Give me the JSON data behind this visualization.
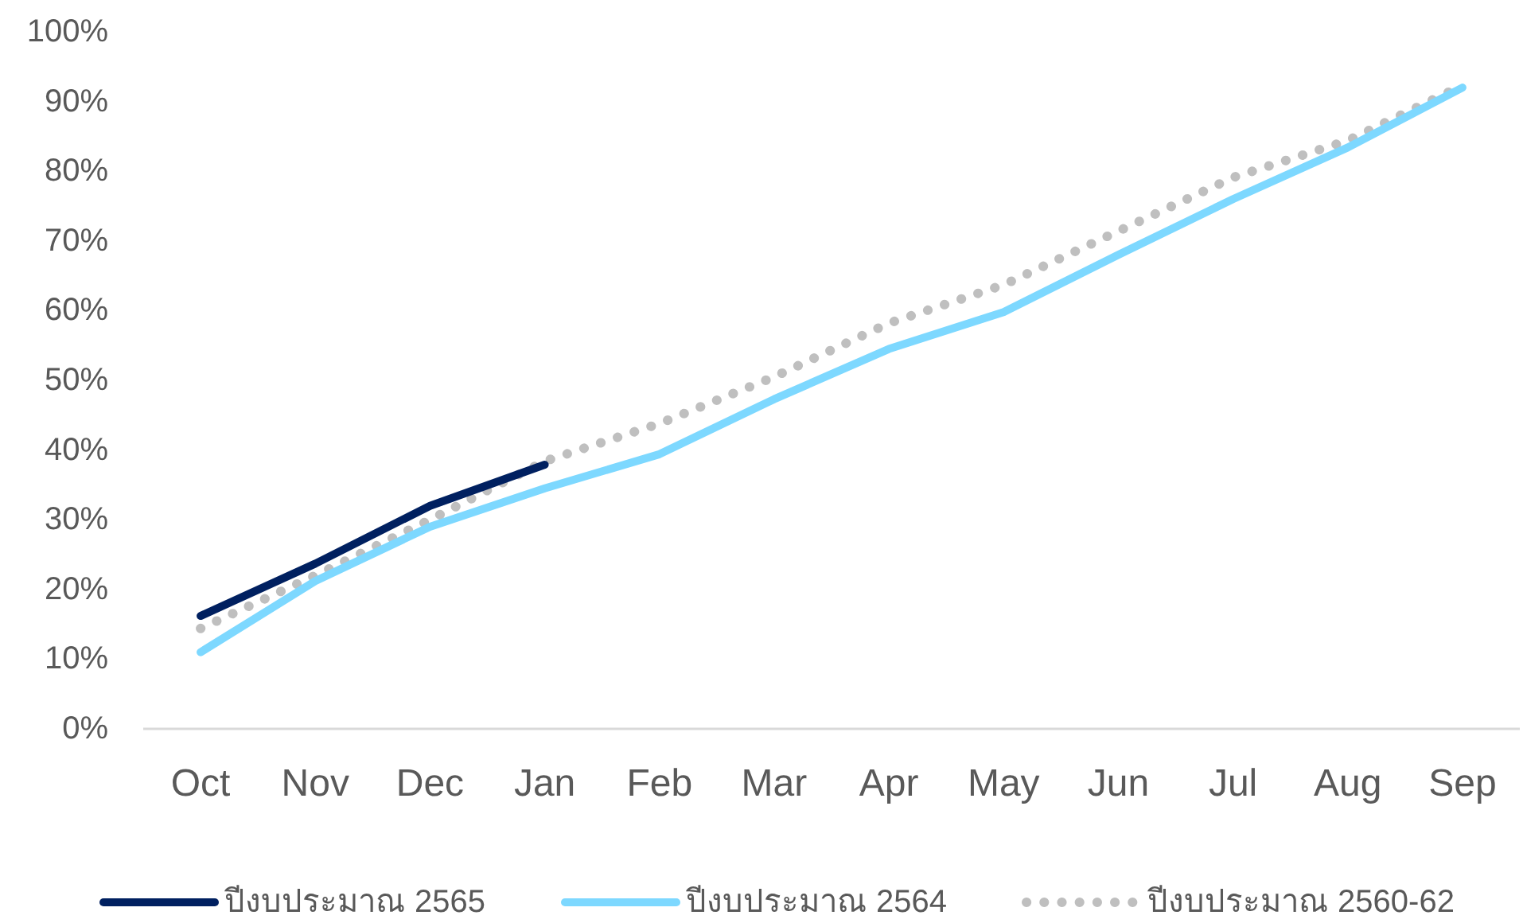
{
  "chart_data": {
    "type": "line",
    "categories": [
      "Oct",
      "Nov",
      "Dec",
      "Jan",
      "Feb",
      "Mar",
      "Apr",
      "May",
      "Jun",
      "Jul",
      "Aug",
      "Sep"
    ],
    "series": [
      {
        "name": "ปีงบประมาณ 2565",
        "color": "#002060",
        "line_style": "solid",
        "values": [
          16.2,
          23.7,
          32,
          37.9,
          null,
          null,
          null,
          null,
          null,
          null,
          null,
          null
        ]
      },
      {
        "name": "ปีงบประมาณ 2564",
        "color": "#7DD8FF",
        "line_style": "solid",
        "values": [
          11,
          21.2,
          29,
          34.5,
          39.4,
          47.3,
          54.5,
          59.8,
          68,
          76,
          83.4,
          92
        ]
      },
      {
        "name": "ปีงบประมาณ 2560-62",
        "color": "#BFBFBF",
        "line_style": "dotted",
        "values": [
          14.4,
          22,
          30,
          38.4,
          43.8,
          50.5,
          58.2,
          63.7,
          71.4,
          79.1,
          84.4,
          92.3
        ]
      }
    ],
    "ylim": [
      0,
      100
    ],
    "yticks": [
      {
        "value": 0,
        "label": "0%"
      },
      {
        "value": 10,
        "label": "10%"
      },
      {
        "value": 20,
        "label": "20%"
      },
      {
        "value": 30,
        "label": "30%"
      },
      {
        "value": 40,
        "label": "40%"
      },
      {
        "value": 50,
        "label": "50%"
      },
      {
        "value": 60,
        "label": "60%"
      },
      {
        "value": 70,
        "label": "70%"
      },
      {
        "value": 80,
        "label": "80%"
      },
      {
        "value": 90,
        "label": "90%"
      },
      {
        "value": 100,
        "label": "100%"
      }
    ],
    "legend": "bottom"
  }
}
